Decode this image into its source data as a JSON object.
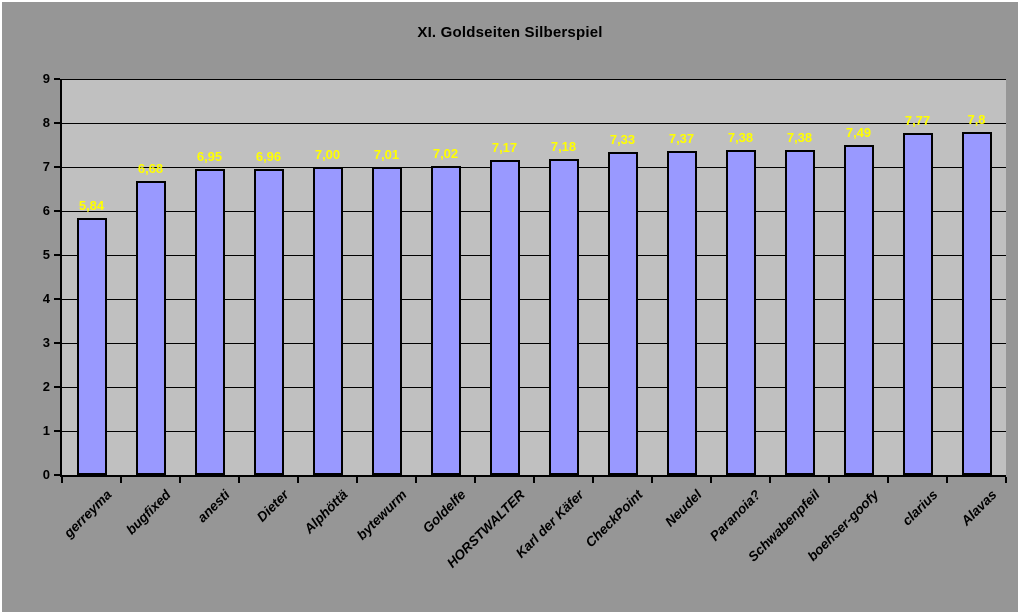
{
  "window": {
    "background_color": "#969696",
    "plot_background_color": "#C0C0C0",
    "outer_edge_color": "#ffffff"
  },
  "chart_data": {
    "type": "bar",
    "title": "XI. Goldseiten Silberspiel",
    "categories": [
      "gerreyma",
      "bugfixed",
      "anesti",
      "Dieter",
      "Alphöttä",
      "bytewurm",
      "Goldelfe",
      "HORSTWALTER",
      "Karl der Käfer",
      "CheckPoint",
      "Neudel",
      "Paranoia?",
      "Schwabenpfeil",
      "boehser-goofy",
      "clarius",
      "Alavas"
    ],
    "values": [
      5.84,
      6.68,
      6.95,
      6.96,
      7.0,
      7.01,
      7.02,
      7.17,
      7.18,
      7.33,
      7.37,
      7.38,
      7.38,
      7.49,
      7.77,
      7.8
    ],
    "value_labels": [
      "5,84",
      "6,68",
      "6,95",
      "6,96",
      "7,00",
      "7,01",
      "7,02",
      "7,17",
      "7,18",
      "7,33",
      "7,37",
      "7,38",
      "7,38",
      "7,49",
      "7,77",
      "7,8"
    ],
    "xlabel": "",
    "ylabel": "",
    "ylim": [
      0,
      9
    ],
    "yticks": [
      "0",
      "1",
      "2",
      "3",
      "4",
      "5",
      "6",
      "7",
      "8",
      "9"
    ],
    "grid": true,
    "legend": false,
    "bar_fill_color": "#9999FF",
    "bar_border_color": "#000000",
    "value_label_color": "#FFFF00",
    "gridline_color": "#000000",
    "axis_text_color": "#000000"
  }
}
